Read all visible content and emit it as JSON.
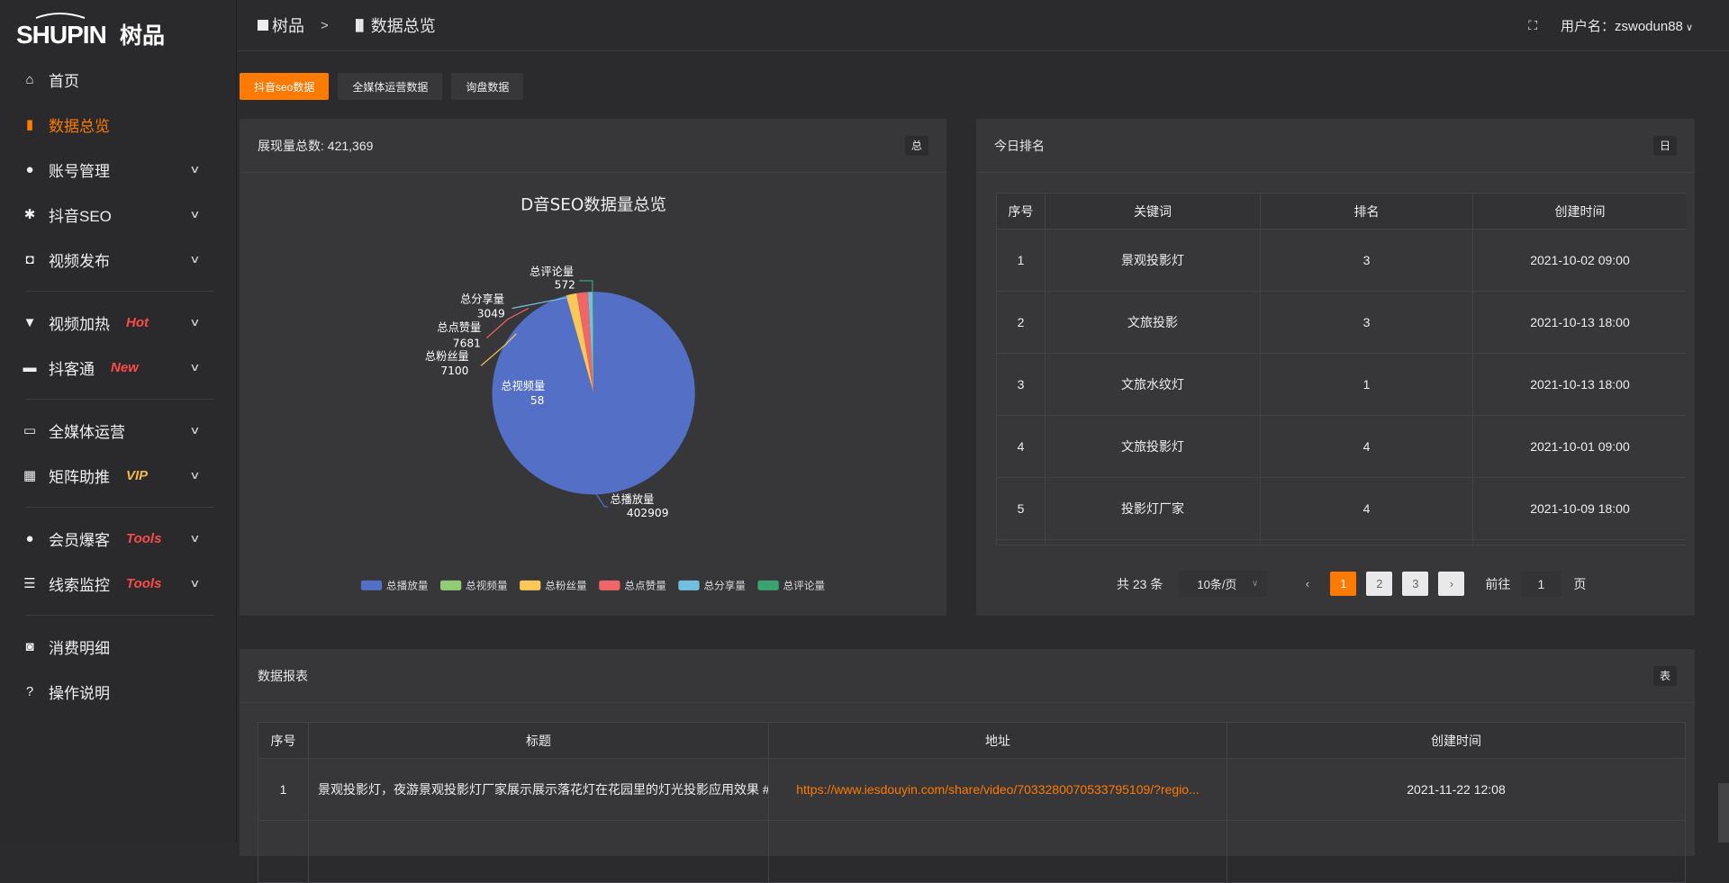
{
  "logo": {
    "text": "SHUPIN 树品"
  },
  "sidebar": {
    "items": [
      {
        "label": "首页",
        "icon": "home-icon",
        "active": false
      },
      {
        "label": "数据总览",
        "icon": "bar-chart-icon",
        "active": true
      },
      {
        "label": "账号管理",
        "icon": "user-icon",
        "chevron": true
      },
      {
        "label": "抖音SEO",
        "icon": "gear-icon",
        "chevron": true
      },
      {
        "label": "视频发布",
        "icon": "camera-icon",
        "chevron": true
      },
      {
        "label": "视频加热",
        "icon": "monitor-stand-icon",
        "chevron": true,
        "badge": "Hot",
        "badge_color": "#ff4a4a"
      },
      {
        "label": "抖客通",
        "icon": "chat-icon",
        "chevron": true,
        "badge": "New",
        "badge_color": "#ff4a4a"
      },
      {
        "label": "全媒体运营",
        "icon": "desktop-icon",
        "chevron": true
      },
      {
        "label": "矩阵助推",
        "icon": "grid-icon",
        "chevron": true,
        "badge": "VIP",
        "badge_color": "#f2b84b"
      },
      {
        "label": "会员爆客",
        "icon": "user-icon",
        "chevron": true,
        "badge": "Tools",
        "badge_color": "#ff4a4a"
      },
      {
        "label": "线索监控",
        "icon": "sliders-icon",
        "chevron": true,
        "badge": "Tools",
        "badge_color": "#ff4a4a"
      },
      {
        "label": "消费明细",
        "icon": "wallet-icon"
      },
      {
        "label": "操作说明",
        "icon": "help-icon"
      }
    ]
  },
  "header": {
    "breadcrumb": [
      "树品",
      "数据总览"
    ],
    "separator": ">",
    "user_label": "用户名：zswodun88"
  },
  "tabs": [
    {
      "label": "抖音seo数据",
      "active": true
    },
    {
      "label": "全媒体运营数据"
    },
    {
      "label": "询盘数据"
    }
  ],
  "overview": {
    "title": "展现量总数: 421,369",
    "tag": "总"
  },
  "chart_data": {
    "type": "pie",
    "title": "D音SEO数据量总览",
    "legend_position": "bottom",
    "series": [
      {
        "name": "总播放量",
        "value": 402909,
        "color": "#5470c6"
      },
      {
        "name": "总视频量",
        "value": 58,
        "color": "#91cc75"
      },
      {
        "name": "总粉丝量",
        "value": 7100,
        "color": "#fac858"
      },
      {
        "name": "总点赞量",
        "value": 7681,
        "color": "#ee6666"
      },
      {
        "name": "总分享量",
        "value": 3049,
        "color": "#73c0de"
      },
      {
        "name": "总评论量",
        "value": 572,
        "color": "#3ba272"
      }
    ]
  },
  "ranking": {
    "title": "今日排名",
    "tag": "日",
    "columns": [
      "序号",
      "关键词",
      "排名",
      "创建时间"
    ],
    "rows": [
      [
        "1",
        "景观投影灯",
        "3",
        "2021-10-02 09:00"
      ],
      [
        "2",
        "文旅投影",
        "3",
        "2021-10-13 18:00"
      ],
      [
        "3",
        "文旅水纹灯",
        "1",
        "2021-10-13 18:00"
      ],
      [
        "4",
        "文旅投影灯",
        "4",
        "2021-10-01 09:00"
      ],
      [
        "5",
        "投影灯厂家",
        "4",
        "2021-10-09 18:00"
      ]
    ],
    "pager": {
      "total": "共 23 条",
      "page_size": "10条/页",
      "pages": [
        "1",
        "2",
        "3"
      ],
      "current": "1",
      "goto_label": "前往",
      "goto_value": "1",
      "page_suffix": "页"
    }
  },
  "report": {
    "title": "数据报表",
    "tag": "表",
    "columns": [
      "序号",
      "标题",
      "地址",
      "创建时间"
    ],
    "rows": [
      [
        "1",
        "景观投影灯，夜游景观投影灯厂家展示展示落花灯在花园里的灯光投影应用效果 #",
        "https://www.iesdouyin.com/share/video/7033280070533795109/?regio...",
        "2021-11-22 12:08"
      ]
    ]
  },
  "colors": {
    "accent": "#ff7a00",
    "card": "#37373a",
    "background": "#2b2b2e"
  }
}
